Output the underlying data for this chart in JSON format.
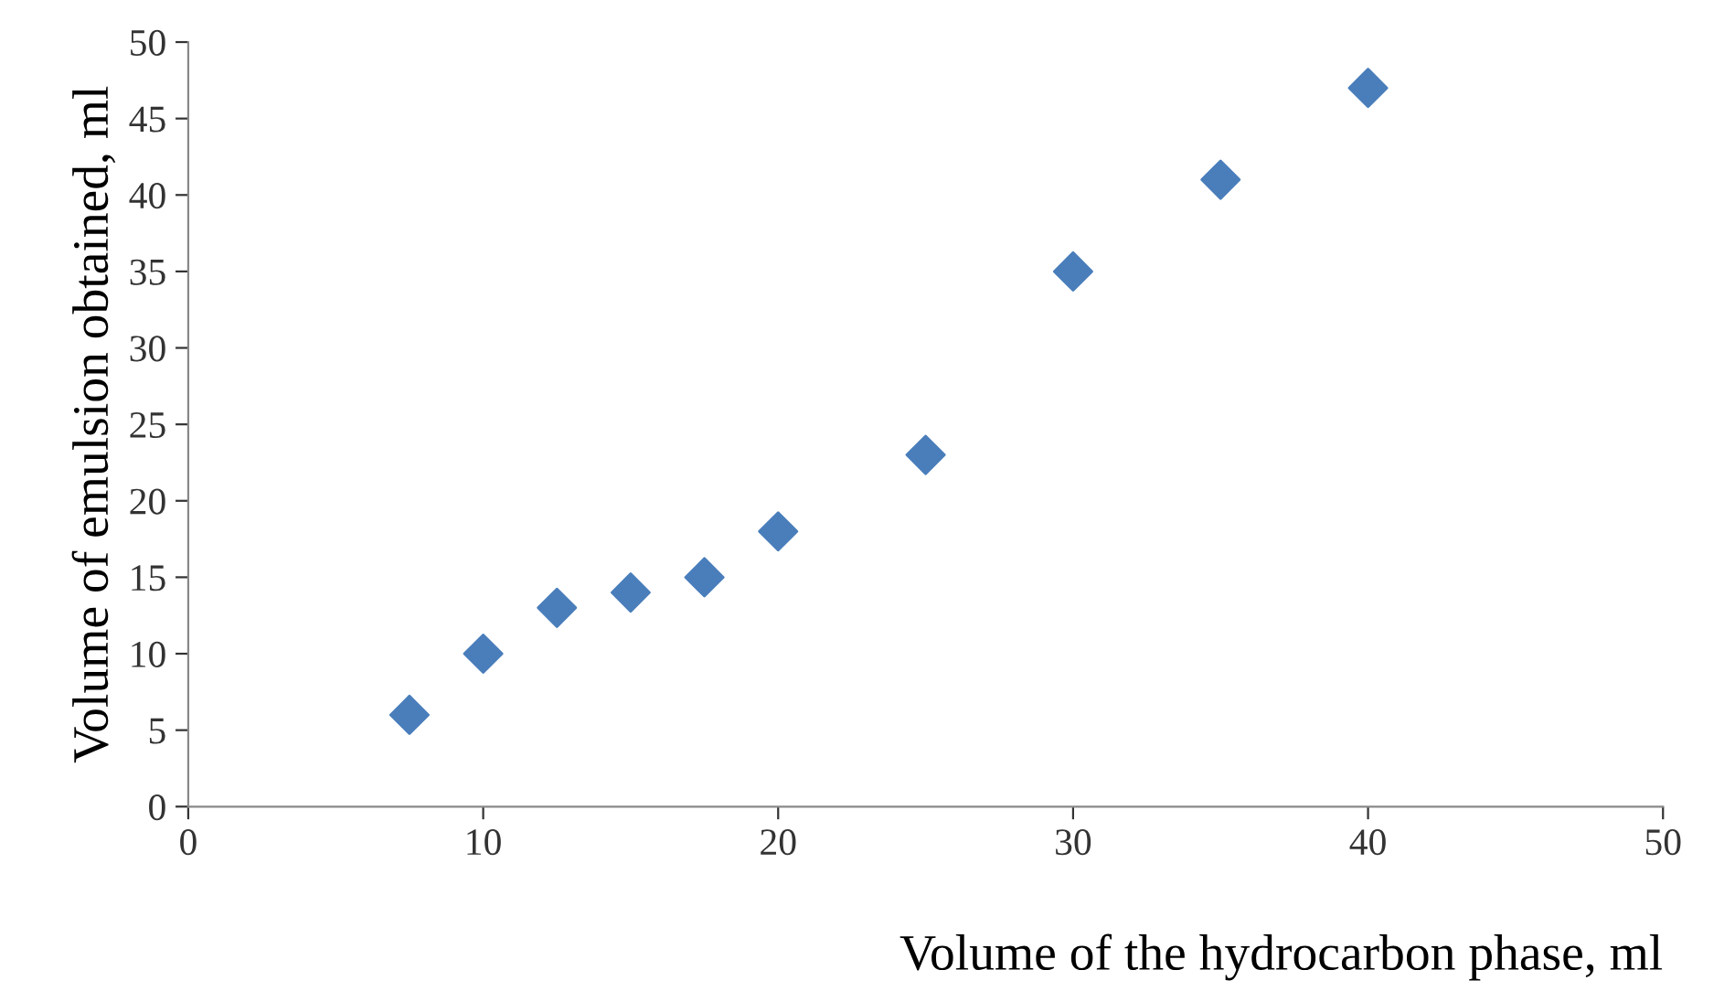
{
  "chart_data": {
    "type": "scatter",
    "xlabel": "Volume of the hydrocarbon phase, ml",
    "ylabel": "Volume of emulsion obtained, ml",
    "x": [
      7.5,
      10,
      12.5,
      15,
      17.5,
      20,
      25,
      30,
      35,
      40
    ],
    "series": [
      {
        "color": "#4a7ebb",
        "values": [
          6,
          10,
          13,
          14,
          15,
          18,
          23,
          35,
          41,
          47
        ]
      }
    ],
    "xlim": [
      0,
      50
    ],
    "xticks": [
      0,
      10,
      20,
      30,
      40,
      50
    ],
    "ylim": [
      0,
      50
    ],
    "yticks": [
      0,
      5,
      10,
      15,
      20,
      25,
      30,
      35,
      40,
      45,
      50
    ],
    "marker": "diamond",
    "grid": false,
    "legend": false
  }
}
